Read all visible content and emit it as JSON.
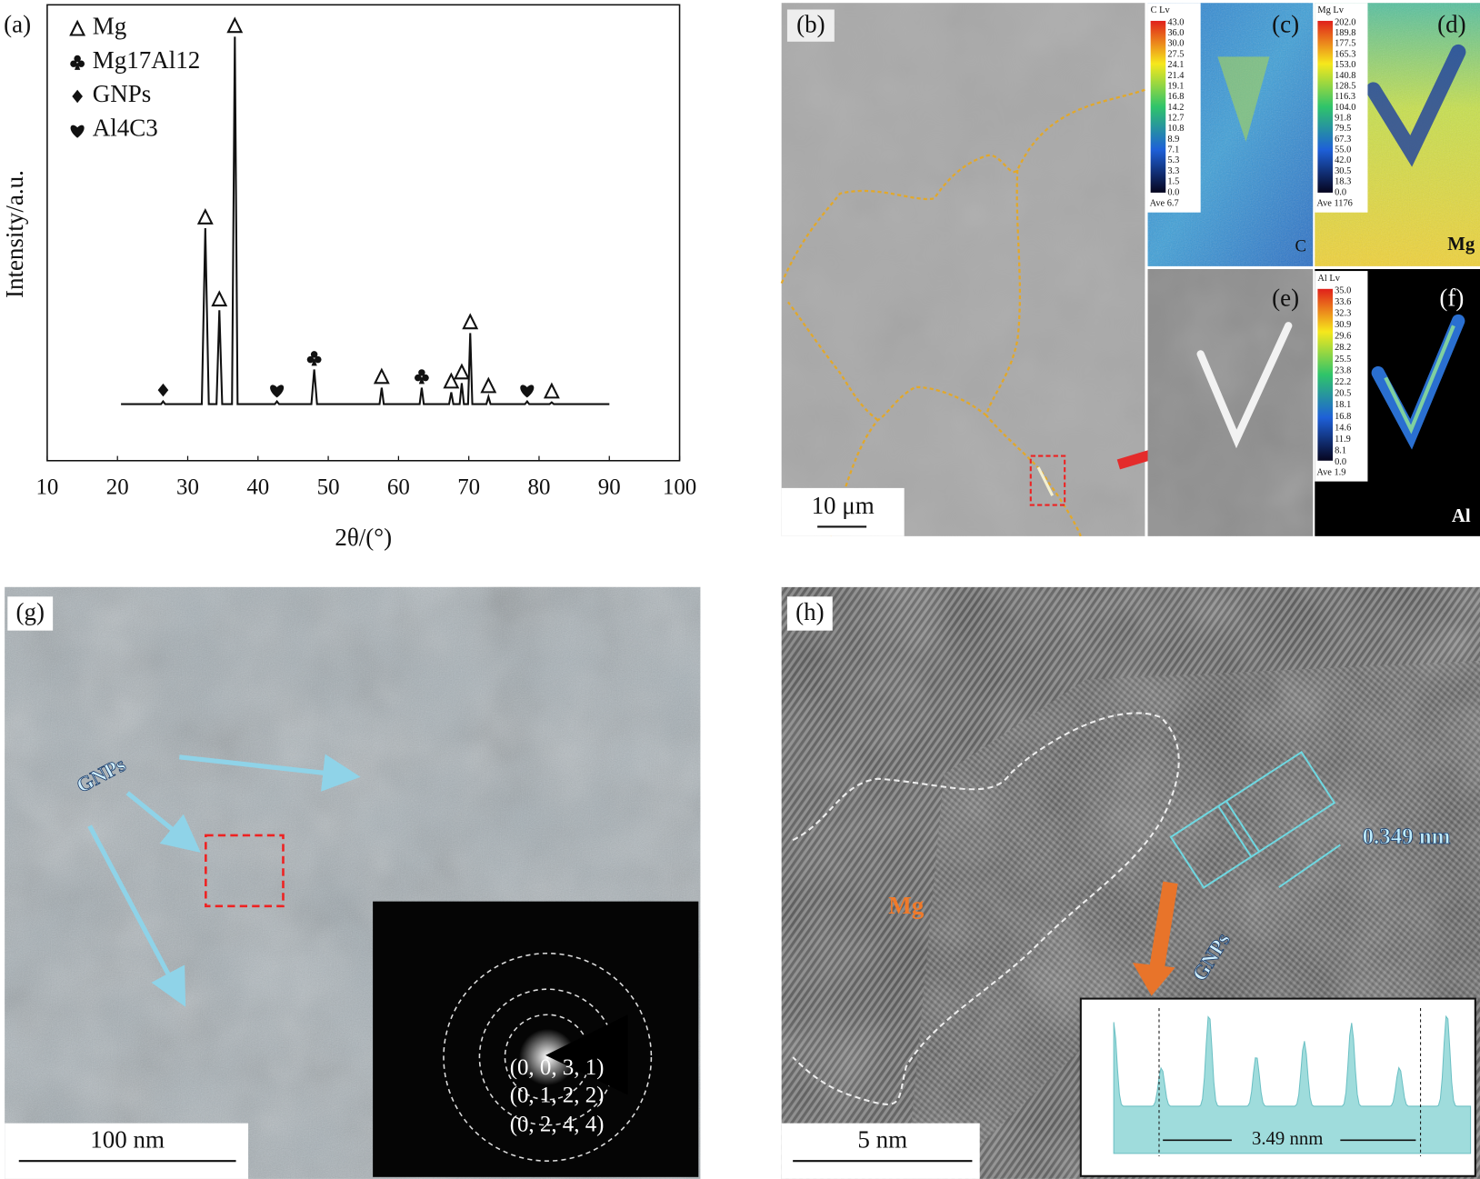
{
  "chart_data": {
    "type": "line",
    "panel_label": "(a)",
    "x_label": "2θ/(°)",
    "y_label": "Intensity/a.u.",
    "xlim": [
      10,
      100
    ],
    "xticks": [
      10,
      20,
      30,
      40,
      50,
      60,
      70,
      80,
      90,
      100
    ],
    "ylim": [
      0,
      100
    ],
    "color": "#111111",
    "x": [
      20.5,
      26.2,
      26.5,
      26.8,
      32.0,
      32.5,
      33.0,
      34.1,
      34.5,
      34.9,
      36.3,
      36.7,
      37.1,
      42.4,
      42.7,
      43.0,
      47.6,
      48.0,
      48.4,
      57.3,
      57.6,
      57.9,
      63.0,
      63.3,
      63.6,
      67.2,
      67.5,
      67.8,
      68.7,
      69.0,
      69.3,
      69.9,
      70.2,
      70.5,
      72.5,
      72.8,
      73.1,
      78.0,
      78.3,
      78.6,
      81.5,
      81.8,
      82.1,
      90.0
    ],
    "values": [
      12.4,
      12.4,
      13,
      12.4,
      12.4,
      51,
      12.4,
      12.4,
      33,
      12.4,
      12.4,
      93,
      12.4,
      12.4,
      13,
      12.4,
      12.4,
      20,
      12.4,
      12.4,
      16,
      12.4,
      12.4,
      16,
      12.4,
      12.4,
      15,
      12.4,
      12.4,
      17,
      12.4,
      12.4,
      28,
      12.4,
      12.4,
      14,
      12.4,
      12.4,
      13,
      12.4,
      12.4,
      12.8,
      12.4,
      12.4
    ],
    "series": [
      {
        "name": "Mg",
        "symbol": "triangle",
        "color": "#111111",
        "x": [
          32.5,
          34.5,
          36.7,
          57.6,
          67.5,
          69.0,
          70.2,
          72.8,
          81.8
        ],
        "values": [
          51,
          33,
          93,
          16,
          15,
          17,
          28,
          14,
          12.8
        ]
      },
      {
        "name": "Mg17Al12",
        "symbol": "club",
        "color": "#111111",
        "x": [
          48.0,
          63.3
        ],
        "values": [
          20,
          16
        ]
      },
      {
        "name": "GNPs",
        "symbol": "diamond",
        "color": "#111111",
        "x": [
          26.5
        ],
        "values": [
          13
        ]
      },
      {
        "name": "Al4C3",
        "symbol": "heart",
        "color": "#111111",
        "x": [
          42.7,
          78.3
        ],
        "values": [
          13,
          13
        ]
      }
    ]
  },
  "panels": {
    "b": {
      "label": "(b)",
      "scale": "10 μm"
    },
    "c": {
      "label": "(c)",
      "title": "C Lv",
      "colorbar": [
        "43.0",
        "36.0",
        "30.0",
        "27.5",
        "24.1",
        "21.4",
        "19.1",
        "16.8",
        "14.2",
        "12.7",
        "10.8",
        "8.9",
        "7.1",
        "5.3",
        "3.3",
        "1.5",
        "0.0"
      ],
      "average": "Ave 6.7",
      "element": "C"
    },
    "d": {
      "label": "(d)",
      "title": "Mg Lv",
      "colorbar": [
        "202.0",
        "189.8",
        "177.5",
        "165.3",
        "153.0",
        "140.8",
        "128.5",
        "116.3",
        "104.0",
        "91.8",
        "79.5",
        "67.3",
        "55.0",
        "42.0",
        "30.5",
        "18.3",
        "0.0"
      ],
      "average": "Ave 1176",
      "element": "Mg"
    },
    "e": {
      "label": "(e)"
    },
    "f": {
      "label": "(f)",
      "title": "Al Lv",
      "colorbar": [
        "35.0",
        "33.6",
        "32.3",
        "30.9",
        "29.6",
        "28.2",
        "25.5",
        "23.8",
        "22.2",
        "20.5",
        "18.1",
        "16.8",
        "14.6",
        "11.9",
        "8.1",
        "0.0"
      ],
      "average": "Ave 1.9",
      "element": "Al"
    },
    "g": {
      "label": "(g)",
      "annotation": "GNPs",
      "scale": "100 nm",
      "indices": [
        "(0, 0, 3, 1)",
        "(0, 1, 2, 2)",
        "(0, 2, 4, 4)"
      ]
    },
    "h": {
      "label": "(h)",
      "phase": "Mg",
      "spacing": "0.349 nm",
      "annotation": "GNPs",
      "scale": "5 nm",
      "profile_width": "3.49 nnm"
    }
  }
}
